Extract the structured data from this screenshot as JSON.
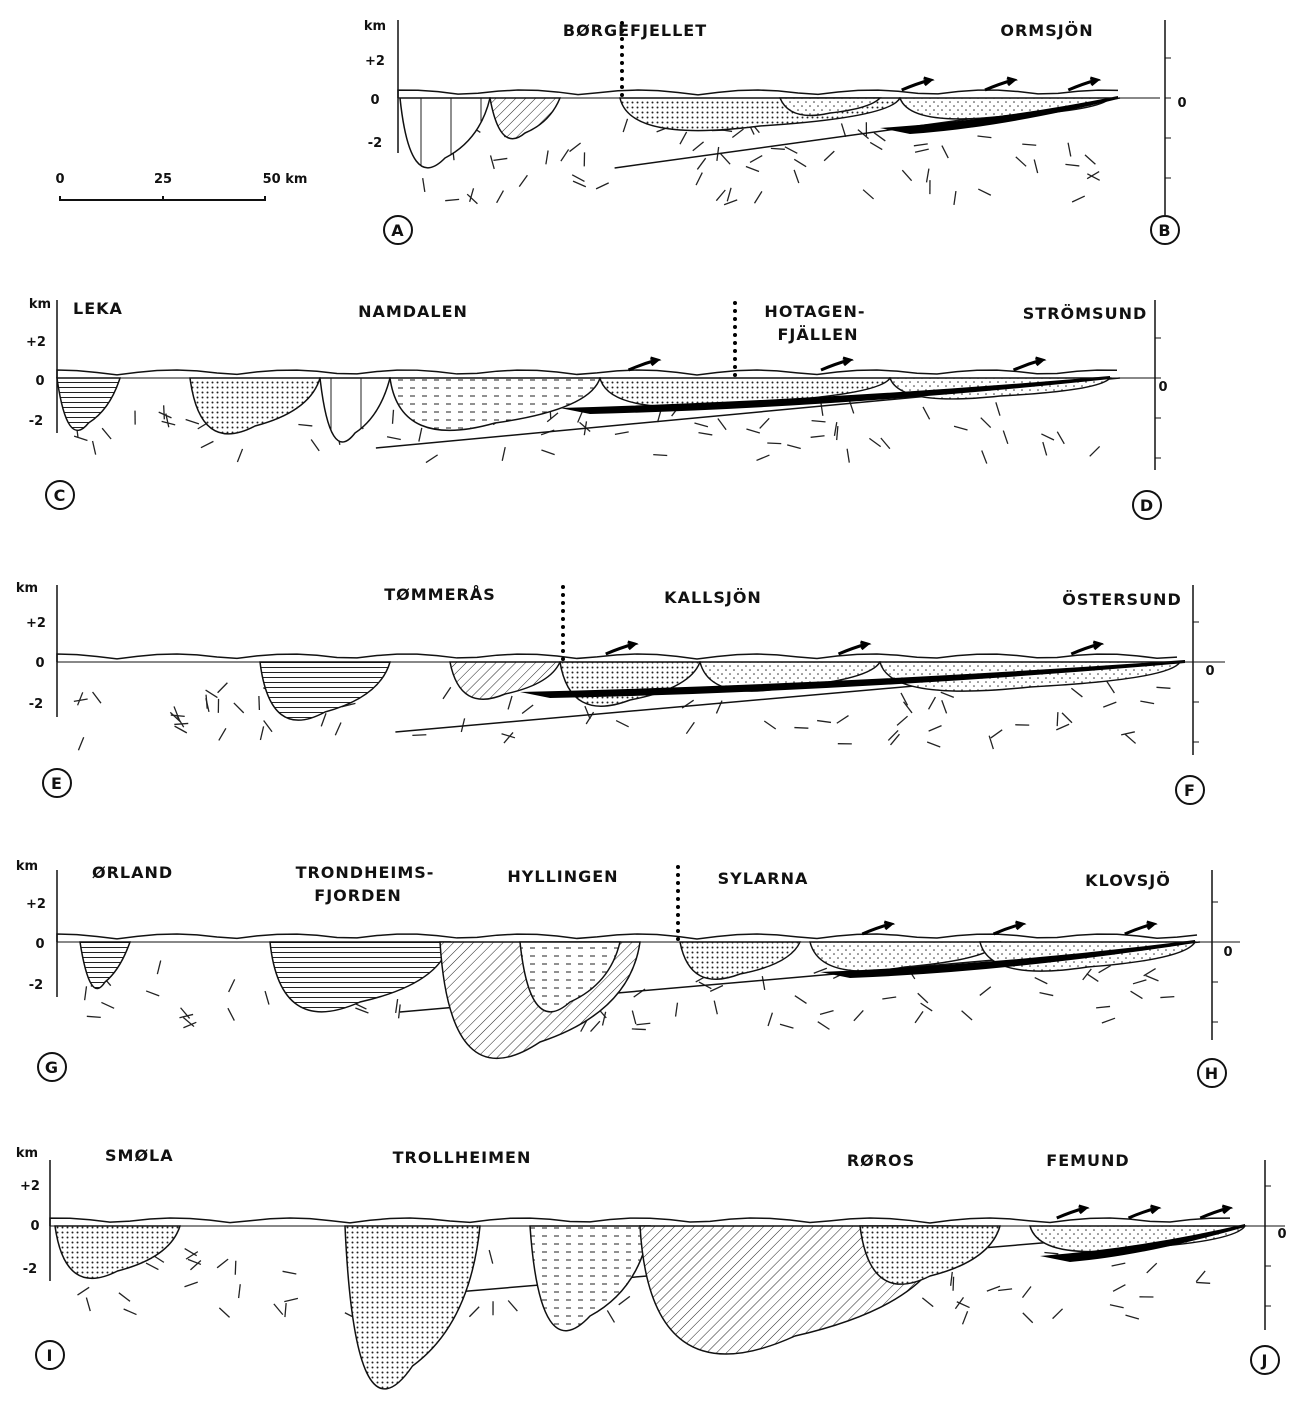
{
  "scale_bar": {
    "labels": [
      "0",
      "25",
      "50 km"
    ]
  },
  "sections": [
    {
      "start": "A",
      "end": "B",
      "unit": "km",
      "y_ticks": [
        "+2",
        "0",
        "-2"
      ],
      "right_tick": "0",
      "places": [
        [
          "BØRGEFJELLET"
        ],
        [
          "ORMSJÖN"
        ]
      ]
    },
    {
      "start": "C",
      "end": "D",
      "unit": "km",
      "y_ticks": [
        "+2",
        "0",
        "-2"
      ],
      "right_tick": "0",
      "places": [
        [
          "LEKA"
        ],
        [
          "NAMDALEN"
        ],
        [
          "HOTAGEN-",
          "FJÄLLEN"
        ],
        [
          "STRÖMSUND"
        ]
      ]
    },
    {
      "start": "E",
      "end": "F",
      "unit": "km",
      "y_ticks": [
        "+2",
        "0",
        "-2"
      ],
      "right_tick": "0",
      "places": [
        [
          "TØMMERÅS"
        ],
        [
          "KALLSJÖN"
        ],
        [
          "ÖSTERSUND"
        ]
      ]
    },
    {
      "start": "G",
      "end": "H",
      "unit": "km",
      "y_ticks": [
        "+2",
        "0",
        "-2"
      ],
      "right_tick": "0",
      "places": [
        [
          "ØRLAND"
        ],
        [
          "TRONDHEIMS-",
          "FJORDEN"
        ],
        [
          "HYLLINGEN"
        ],
        [
          "SYLARNA"
        ],
        [
          "KLOVSJÖ"
        ]
      ]
    },
    {
      "start": "I",
      "end": "J",
      "unit": "km",
      "y_ticks": [
        "+2",
        "0",
        "-2"
      ],
      "right_tick": "0",
      "places": [
        [
          "SMØLA"
        ],
        [
          "TROLLHEIMEN"
        ],
        [
          "RØROS"
        ],
        [
          "FEMUND"
        ]
      ]
    }
  ]
}
